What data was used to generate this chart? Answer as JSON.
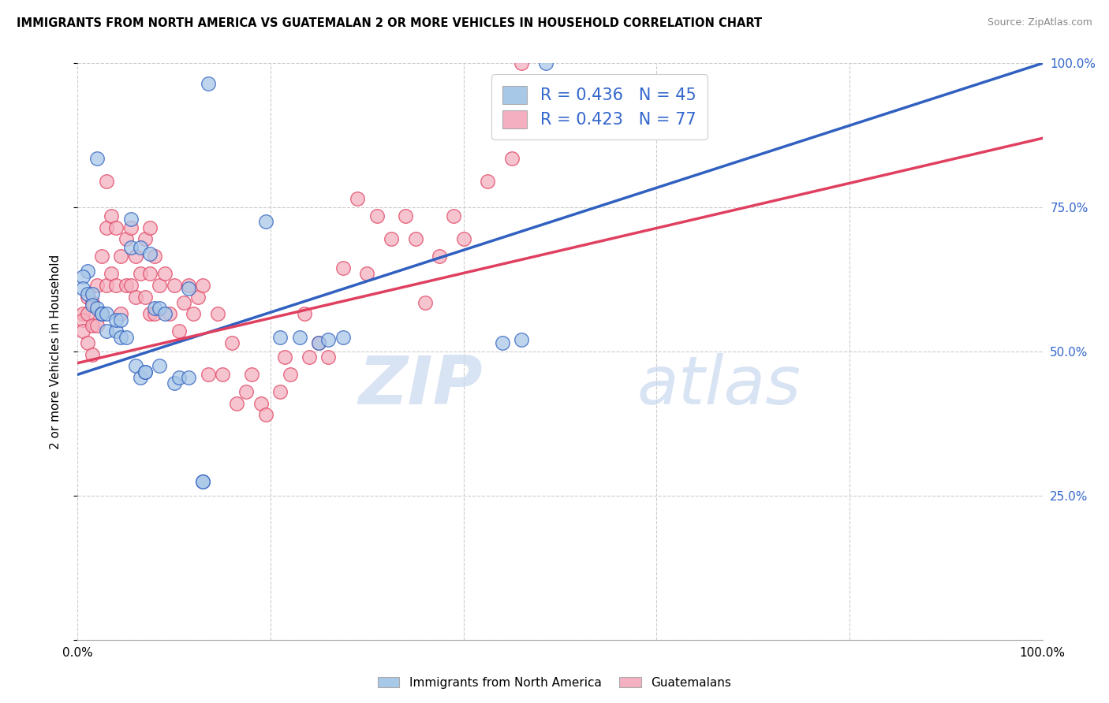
{
  "title": "IMMIGRANTS FROM NORTH AMERICA VS GUATEMALAN 2 OR MORE VEHICLES IN HOUSEHOLD CORRELATION CHART",
  "source": "Source: ZipAtlas.com",
  "ylabel": "2 or more Vehicles in Household",
  "xlim": [
    0.0,
    1.0
  ],
  "ylim": [
    0.0,
    1.0
  ],
  "blue_R": 0.436,
  "blue_N": 45,
  "pink_R": 0.423,
  "pink_N": 77,
  "blue_color": "#a8c8e8",
  "pink_color": "#f4b0c0",
  "blue_line_color": "#3060c0",
  "pink_line_color": "#e04060",
  "watermark_zip": "ZIP",
  "watermark_atlas": "atlas",
  "legend_label_blue": "Immigrants from North America",
  "legend_label_pink": "Guatemalans",
  "blue_line_x0": 0.0,
  "blue_line_y0": 0.46,
  "blue_line_x1": 1.0,
  "blue_line_y1": 1.0,
  "pink_line_x0": 0.0,
  "pink_line_y0": 0.48,
  "pink_line_x1": 1.0,
  "pink_line_y1": 0.87,
  "blue_points_x": [
    0.135,
    0.02,
    0.055,
    0.055,
    0.065,
    0.075,
    0.01,
    0.005,
    0.005,
    0.01,
    0.015,
    0.015,
    0.02,
    0.025,
    0.025,
    0.03,
    0.03,
    0.04,
    0.04,
    0.045,
    0.045,
    0.05,
    0.06,
    0.065,
    0.07,
    0.07,
    0.08,
    0.085,
    0.085,
    0.09,
    0.1,
    0.105,
    0.115,
    0.115,
    0.13,
    0.13,
    0.195,
    0.21,
    0.23,
    0.25,
    0.26,
    0.275,
    0.44,
    0.46,
    0.485
  ],
  "blue_points_y": [
    0.965,
    0.835,
    0.73,
    0.68,
    0.68,
    0.67,
    0.64,
    0.63,
    0.61,
    0.6,
    0.6,
    0.58,
    0.575,
    0.565,
    0.565,
    0.565,
    0.535,
    0.535,
    0.555,
    0.555,
    0.525,
    0.525,
    0.475,
    0.455,
    0.465,
    0.465,
    0.575,
    0.575,
    0.475,
    0.565,
    0.445,
    0.455,
    0.61,
    0.455,
    0.275,
    0.275,
    0.725,
    0.525,
    0.525,
    0.515,
    0.52,
    0.525,
    0.515,
    0.52,
    1.0
  ],
  "pink_points_x": [
    0.005,
    0.005,
    0.005,
    0.01,
    0.01,
    0.01,
    0.015,
    0.015,
    0.015,
    0.02,
    0.02,
    0.025,
    0.025,
    0.03,
    0.03,
    0.03,
    0.035,
    0.035,
    0.04,
    0.04,
    0.045,
    0.045,
    0.05,
    0.05,
    0.055,
    0.055,
    0.06,
    0.06,
    0.065,
    0.07,
    0.07,
    0.075,
    0.075,
    0.075,
    0.08,
    0.08,
    0.085,
    0.09,
    0.095,
    0.1,
    0.105,
    0.11,
    0.115,
    0.12,
    0.125,
    0.13,
    0.135,
    0.145,
    0.15,
    0.16,
    0.165,
    0.175,
    0.18,
    0.19,
    0.195,
    0.21,
    0.215,
    0.22,
    0.235,
    0.24,
    0.25,
    0.26,
    0.275,
    0.29,
    0.3,
    0.31,
    0.325,
    0.34,
    0.35,
    0.36,
    0.375,
    0.39,
    0.4,
    0.425,
    0.45,
    0.46,
    0.48
  ],
  "pink_points_y": [
    0.565,
    0.555,
    0.535,
    0.595,
    0.565,
    0.515,
    0.585,
    0.545,
    0.495,
    0.615,
    0.545,
    0.665,
    0.565,
    0.795,
    0.715,
    0.615,
    0.735,
    0.635,
    0.715,
    0.615,
    0.665,
    0.565,
    0.695,
    0.615,
    0.715,
    0.615,
    0.665,
    0.595,
    0.635,
    0.695,
    0.595,
    0.715,
    0.635,
    0.565,
    0.665,
    0.565,
    0.615,
    0.635,
    0.565,
    0.615,
    0.535,
    0.585,
    0.615,
    0.565,
    0.595,
    0.615,
    0.46,
    0.565,
    0.46,
    0.515,
    0.41,
    0.43,
    0.46,
    0.41,
    0.39,
    0.43,
    0.49,
    0.46,
    0.565,
    0.49,
    0.515,
    0.49,
    0.645,
    0.765,
    0.635,
    0.735,
    0.695,
    0.735,
    0.695,
    0.585,
    0.665,
    0.735,
    0.695,
    0.795,
    0.835,
    1.0,
    0.9
  ]
}
